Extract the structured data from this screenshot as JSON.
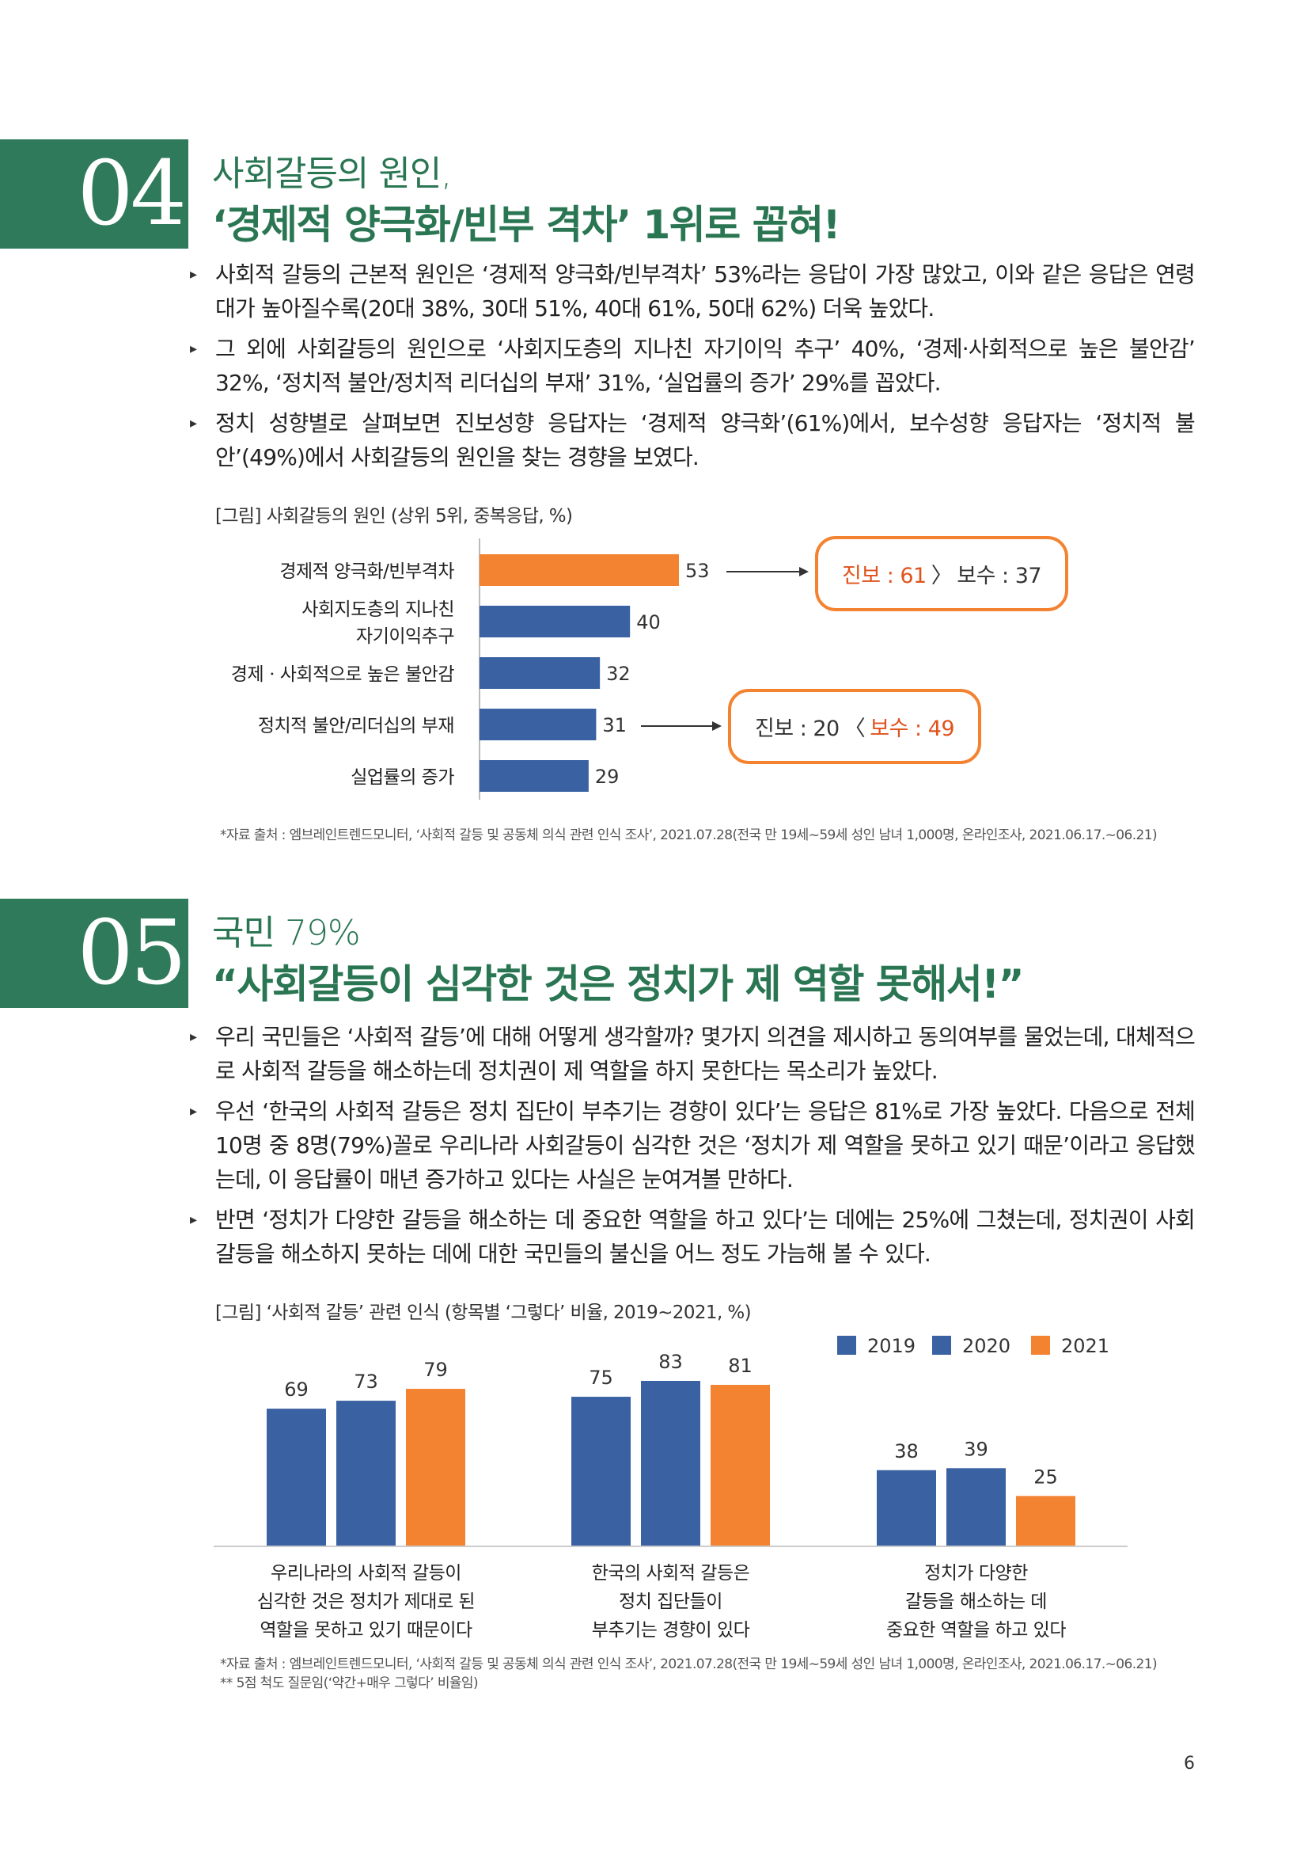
{
  "colors": {
    "green": "#2e7a5a",
    "blue": "#3a62a3",
    "orange": "#f48331",
    "highlight_red": "#e0531c"
  },
  "section04": {
    "number": "04",
    "subtitle": "사회갈등의 원인,",
    "headline": "‘경제적 양극화/빈부 격차’ 1위로 꼽혀!",
    "bullets": [
      "사회적 갈등의 근본적 원인은 ‘경제적 양극화/빈부격차’ 53%라는 응답이 가장 많았고, 이와 같은 응답은 연령대가 높아질수록(20대 38%, 30대 51%, 40대 61%, 50대 62%) 더욱 높았다.",
      "그 외에 사회갈등의 원인으로 ‘사회지도층의 지나친 자기이익 추구’ 40%, ‘경제·사회적으로 높은 불안감’ 32%, ‘정치적 불안/정치적 리더십의 부재’ 31%, ‘실업률의 증가’ 29%를 꼽았다.",
      "정치 성향별로 살펴보면 진보성향 응답자는 ‘경제적 양극화’(61%)에서, 보수성향 응답자는 ‘정치적 불안’(49%)에서 사회갈등의 원인을 찾는 경향을 보였다."
    ],
    "chart_caption": "[그림] 사회갈등의 원인 (상위 5위, 중복응답, %)",
    "source": "*자료 출처 : 엠브레인트렌드모니터, ‘사회적 갈등 및 공동체 의식 관련 인식 조사’, 2021.07.28(전국 만 19세~59세 성인 남녀 1,000명, 온라인조사, 2021.06.17.~06.21)",
    "callouts": [
      {
        "left": "진보 : 61",
        "sep": "〉",
        "right": "보수 : 37",
        "highlight": "left"
      },
      {
        "left": "진보 : 20",
        "sep": "〈",
        "right": "보수 : 49",
        "highlight": "right"
      }
    ]
  },
  "section05": {
    "number": "05",
    "subtitle": "국민 79%",
    "headline": "“사회갈등이 심각한 것은 정치가 제 역할 못해서!”",
    "bullets": [
      "우리 국민들은 ‘사회적 갈등’에 대해 어떻게 생각할까? 몇가지 의견을 제시하고 동의여부를 물었는데, 대체적으로 사회적 갈등을 해소하는데 정치권이 제 역할을 하지 못한다는 목소리가 높았다.",
      "우선 ‘한국의 사회적 갈등은 정치 집단이 부추기는 경향이 있다’는 응답은 81%로 가장 높았다. 다음으로 전체 10명 중 8명(79%)꼴로 우리나라 사회갈등이 심각한 것은 ‘정치가 제 역할을 못하고 있기 때문’이라고 응답했는데, 이 응답률이 매년 증가하고 있다는 사실은 눈여겨볼 만하다.",
      "반면 ‘정치가 다양한 갈등을 해소하는 데 중요한 역할을 하고 있다’는 데에는 25%에 그쳤는데, 정치권이 사회갈등을 해소하지 못하는 데에 대한 국민들의 불신을 어느 정도 가늠해 볼 수 있다."
    ],
    "chart_caption": "[그림] ‘사회적 갈등’ 관련 인식 (항목별 ‘그렇다’ 비율, 2019~2021, %)",
    "source_lines": [
      "*자료 출처 : 엠브레인트렌드모니터, ‘사회적 갈등 및 공동체 의식 관련 인식 조사’, 2021.07.28(전국 만 19세~59세 성인 남녀 1,000명, 온라인조사, 2021.06.17.~06.21)",
      "** 5점 척도 질문임(‘약간+매우 그렇다’ 비율임)"
    ]
  },
  "page_number": "6",
  "chart_data": [
    {
      "type": "bar",
      "orientation": "horizontal",
      "categories": [
        [
          "경제적 양극화/빈부격차"
        ],
        [
          "사회지도층의 지나친",
          "자기이익추구"
        ],
        [
          "경제ㆍ사회적으로 높은 불안감"
        ],
        [
          "정치적 불안/리더십의 부재"
        ],
        [
          "실업률의 증가"
        ]
      ],
      "values": [
        53,
        40,
        32,
        31,
        29
      ],
      "highlight_index": 0,
      "bar_colors": [
        "#f48331",
        "#3a62a3",
        "#3a62a3",
        "#3a62a3",
        "#3a62a3"
      ],
      "xlim": [
        0,
        53
      ]
    },
    {
      "type": "bar",
      "orientation": "vertical",
      "categories": [
        [
          "우리나라의 사회적 갈등이",
          "심각한 것은 정치가 제대로 된",
          "역할을 못하고 있기 때문이다"
        ],
        [
          "한국의 사회적 갈등은",
          "정치 집단들이",
          "부추기는 경향이 있다"
        ],
        [
          "정치가 다양한",
          "갈등을 해소하는 데",
          "중요한 역할을 하고 있다"
        ]
      ],
      "series": [
        {
          "name": "2019",
          "color": "#3a62a3",
          "values": [
            69,
            75,
            38
          ]
        },
        {
          "name": "2020",
          "color": "#3a62a3",
          "values": [
            73,
            83,
            39
          ]
        },
        {
          "name": "2021",
          "color": "#f48331",
          "values": [
            79,
            81,
            25
          ]
        }
      ],
      "ylim": [
        0,
        83
      ],
      "legend": "top-right"
    }
  ]
}
